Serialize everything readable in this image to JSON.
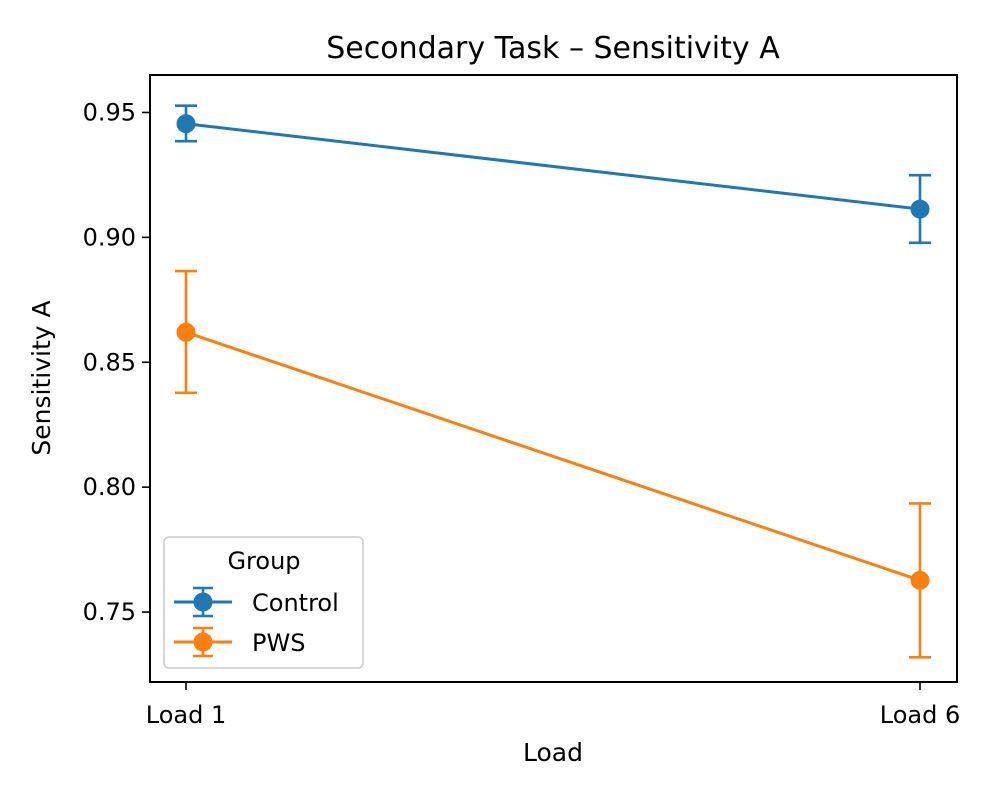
{
  "chart_data": {
    "type": "line",
    "title": "Secondary Task – Sensitivity A",
    "xlabel": "Load",
    "ylabel": "Sensitivity A",
    "categories": [
      "Load 1",
      "Load 6"
    ],
    "ylim": [
      0.722,
      0.965
    ],
    "yticks": [
      0.75,
      0.8,
      0.85,
      0.9,
      0.95
    ],
    "ytick_labels": [
      "0.75",
      "0.80",
      "0.85",
      "0.90",
      "0.95"
    ],
    "grid": false,
    "legend": {
      "title": "Group",
      "placement": "lower-left"
    },
    "series": [
      {
        "name": "Control",
        "color": "#1f77b4",
        "values": [
          0.9455,
          0.9113
        ],
        "err_low": [
          0.9385,
          0.8978
        ],
        "err_high": [
          0.9527,
          0.9249
        ]
      },
      {
        "name": "PWS",
        "color": "#ff7f0e",
        "values": [
          0.862,
          0.7627
        ],
        "err_low": [
          0.8378,
          0.7319
        ],
        "err_high": [
          0.8865,
          0.7935
        ]
      }
    ]
  }
}
